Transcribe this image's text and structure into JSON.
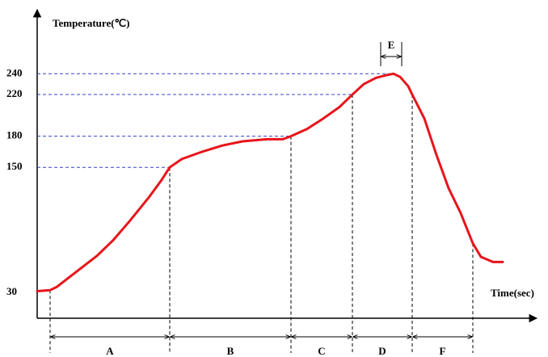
{
  "chart_data": {
    "type": "line",
    "y_label": "Temperature(℃)",
    "x_label": "Time(sec)",
    "x": [
      0,
      16,
      24,
      44,
      74,
      94,
      114,
      139,
      154,
      164,
      179,
      204,
      229,
      254,
      284,
      304,
      314,
      334,
      354,
      374,
      390,
      404,
      419,
      434,
      441,
      449,
      459,
      464,
      479,
      494,
      509,
      524,
      539,
      549,
      564,
      576
    ],
    "series": [
      {
        "color": "#e8141b",
        "values": [
          31,
          32,
          35,
          47,
          65,
          80,
          98,
          122,
          138,
          150,
          158,
          165,
          171,
          175,
          177,
          177,
          180,
          187,
          197,
          208,
          220,
          230,
          236,
          239,
          240,
          237,
          228,
          220,
          197,
          162,
          130,
          106,
          77,
          64,
          59,
          59
        ]
      }
    ],
    "xlim": [
      0,
      620
    ],
    "ylim": [
      5,
      300
    ],
    "yticks": [
      30,
      150,
      180,
      220,
      240
    ],
    "phases": [
      {
        "label": "A",
        "start": 16,
        "end": 164
      },
      {
        "label": "B",
        "start": 164,
        "end": 314
      },
      {
        "label": "C",
        "start": 314,
        "end": 390
      },
      {
        "label": "D",
        "start": 390,
        "end": 464
      },
      {
        "label": "F",
        "start": 464,
        "end": 539
      }
    ],
    "peak_phase": {
      "label": "E",
      "start": 425,
      "end": 451
    }
  }
}
